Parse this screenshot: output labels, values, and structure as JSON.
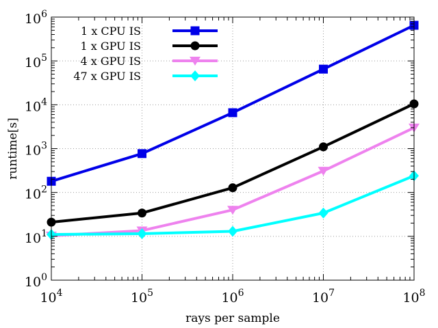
{
  "chart_data": {
    "type": "line",
    "title": "",
    "xlabel": "rays per sample",
    "ylabel": "runtime[s]",
    "xscale": "log",
    "yscale": "log",
    "xlim": [
      10000,
      100000000
    ],
    "ylim": [
      1,
      1000000
    ],
    "grid": true,
    "legend_position": "top-left",
    "x": [
      10000,
      100000,
      1000000,
      10000000,
      100000000
    ],
    "x_ticks": [
      {
        "base": "10",
        "exp": "4"
      },
      {
        "base": "10",
        "exp": "5"
      },
      {
        "base": "10",
        "exp": "6"
      },
      {
        "base": "10",
        "exp": "7"
      },
      {
        "base": "10",
        "exp": "8"
      }
    ],
    "y_ticks": [
      {
        "base": "10",
        "exp": "0"
      },
      {
        "base": "10",
        "exp": "1"
      },
      {
        "base": "10",
        "exp": "2"
      },
      {
        "base": "10",
        "exp": "3"
      },
      {
        "base": "10",
        "exp": "4"
      },
      {
        "base": "10",
        "exp": "5"
      },
      {
        "base": "10",
        "exp": "6"
      }
    ],
    "series": [
      {
        "name": "1 x CPU IS",
        "color": "#0000e8",
        "marker": "square",
        "values": [
          180,
          770,
          6600,
          65000,
          650000
        ]
      },
      {
        "name": "1 x GPU IS",
        "color": "#000000",
        "marker": "circle",
        "values": [
          21,
          34,
          128,
          1100,
          10500
        ]
      },
      {
        "name": "4 x GPU IS",
        "color": "#ee82ee",
        "marker": "triangle-down",
        "values": [
          10.3,
          13.5,
          40,
          310,
          3000
        ]
      },
      {
        "name": "47 x GPU IS",
        "color": "#00ffff",
        "marker": "diamond",
        "values": [
          11,
          11.5,
          13,
          34,
          240
        ]
      }
    ]
  }
}
